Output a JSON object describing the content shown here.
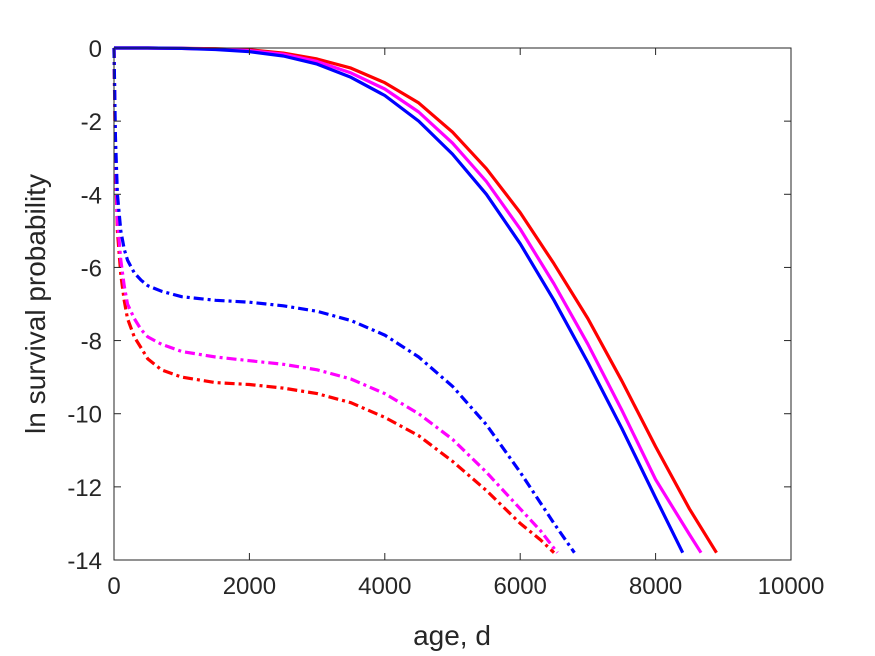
{
  "chart_data": {
    "type": "line",
    "title": "",
    "xlabel": "age, d",
    "ylabel": "ln survival probability",
    "xlim": [
      0,
      10000
    ],
    "ylim": [
      -14,
      0
    ],
    "xticks": [
      0,
      2000,
      4000,
      6000,
      8000,
      10000
    ],
    "yticks": [
      0,
      -2,
      -4,
      -6,
      -8,
      -10,
      -12,
      -14
    ],
    "xtick_labels": [
      "0",
      "2000",
      "4000",
      "6000",
      "8000",
      "10000"
    ],
    "ytick_labels": [
      "0",
      "-2",
      "-4",
      "-6",
      "-8",
      "-10",
      "-12",
      "-14"
    ],
    "grid": false,
    "legend": "none",
    "series": [
      {
        "color": "#ff0000",
        "style": "solid",
        "x": [
          0,
          500,
          1000,
          1500,
          2000,
          2500,
          3000,
          3500,
          4000,
          4500,
          5000,
          5500,
          6000,
          6500,
          7000,
          7500,
          8000,
          8500,
          8900
        ],
        "y": [
          0,
          0,
          -0.01,
          -0.02,
          -0.05,
          -0.14,
          -0.3,
          -0.55,
          -0.95,
          -1.5,
          -2.3,
          -3.3,
          -4.5,
          -5.9,
          -7.4,
          -9.1,
          -10.9,
          -12.6,
          -13.8
        ]
      },
      {
        "color": "#ff00ff",
        "style": "solid",
        "x": [
          0,
          500,
          1000,
          1500,
          2000,
          2500,
          3000,
          3500,
          4000,
          4500,
          5000,
          5500,
          6000,
          6500,
          7000,
          7500,
          8000,
          8500,
          8670
        ],
        "y": [
          0,
          0,
          -0.01,
          -0.03,
          -0.07,
          -0.17,
          -0.37,
          -0.68,
          -1.12,
          -1.75,
          -2.6,
          -3.65,
          -4.95,
          -6.45,
          -8.1,
          -9.9,
          -11.8,
          -13.3,
          -13.8
        ]
      },
      {
        "color": "#0000ff",
        "style": "solid",
        "x": [
          0,
          500,
          1000,
          1500,
          2000,
          2500,
          3000,
          3500,
          4000,
          4500,
          5000,
          5500,
          6000,
          6500,
          7000,
          7500,
          8000,
          8400
        ],
        "y": [
          0,
          0,
          -0.01,
          -0.04,
          -0.1,
          -0.22,
          -0.44,
          -0.8,
          -1.3,
          -2.0,
          -2.9,
          -4.0,
          -5.35,
          -6.9,
          -8.6,
          -10.4,
          -12.3,
          -13.8
        ]
      },
      {
        "color": "#ff0000",
        "style": "dashdot",
        "x": [
          0,
          20,
          50,
          100,
          150,
          200,
          300,
          400,
          500,
          700,
          1000,
          1500,
          2000,
          2500,
          3000,
          3500,
          4000,
          4500,
          5000,
          5500,
          6000,
          6300,
          6500
        ],
        "y": [
          0,
          -3.0,
          -5.0,
          -6.2,
          -6.9,
          -7.4,
          -7.9,
          -8.2,
          -8.5,
          -8.8,
          -9.0,
          -9.15,
          -9.2,
          -9.3,
          -9.45,
          -9.7,
          -10.1,
          -10.6,
          -11.3,
          -12.1,
          -13.0,
          -13.45,
          -13.8
        ]
      },
      {
        "color": "#ff00ff",
        "style": "dashdot",
        "x": [
          0,
          20,
          50,
          100,
          150,
          200,
          300,
          400,
          500,
          700,
          1000,
          1500,
          2000,
          2500,
          3000,
          3500,
          4000,
          4500,
          5000,
          5500,
          6000,
          6300,
          6550
        ],
        "y": [
          0,
          -2.8,
          -4.7,
          -5.8,
          -6.5,
          -7.0,
          -7.4,
          -7.7,
          -7.9,
          -8.1,
          -8.3,
          -8.45,
          -8.55,
          -8.65,
          -8.8,
          -9.05,
          -9.45,
          -10.0,
          -10.7,
          -11.6,
          -12.6,
          -13.2,
          -13.8
        ]
      },
      {
        "color": "#0000ff",
        "style": "dashdot",
        "x": [
          0,
          20,
          50,
          100,
          150,
          200,
          300,
          400,
          500,
          700,
          1000,
          1500,
          2000,
          2500,
          3000,
          3500,
          4000,
          4500,
          5000,
          5500,
          6000,
          6500,
          6800
        ],
        "y": [
          0,
          -2.4,
          -4.0,
          -5.0,
          -5.5,
          -5.8,
          -6.15,
          -6.35,
          -6.5,
          -6.65,
          -6.8,
          -6.9,
          -6.95,
          -7.05,
          -7.2,
          -7.45,
          -7.85,
          -8.45,
          -9.25,
          -10.3,
          -11.6,
          -13.0,
          -13.8
        ]
      }
    ]
  }
}
